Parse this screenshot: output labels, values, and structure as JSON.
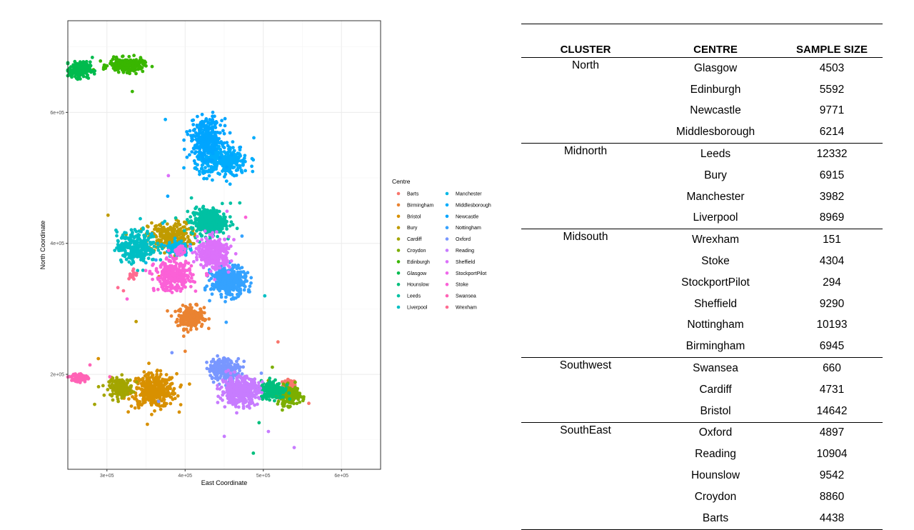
{
  "chart_data": {
    "type": "scatter",
    "xlabel": "East Coordinate",
    "ylabel": "North Coordinate",
    "xlim": [
      250000,
      650000
    ],
    "ylim": [
      55000,
      740000
    ],
    "x_ticks": [
      300000,
      400000,
      500000,
      600000
    ],
    "x_tick_labels": [
      "3e+05",
      "4e+05",
      "5e+05",
      "6e+05"
    ],
    "y_ticks": [
      200000,
      400000,
      600000
    ],
    "y_tick_labels": [
      "2e+05",
      "4e+05",
      "6e+05"
    ],
    "grid": true,
    "legend_title": "Centre",
    "legend_position": "right",
    "series": [
      {
        "name": "Barts",
        "color": "#F8766D",
        "cx": 533000,
        "cy": 182000,
        "sx": 5000,
        "sy": 6000,
        "n": 70
      },
      {
        "name": "Birmingham",
        "color": "#EA8331",
        "cx": 407000,
        "cy": 287000,
        "sx": 10000,
        "sy": 10000,
        "n": 220
      },
      {
        "name": "Bristol",
        "color": "#D89000",
        "cx": 360000,
        "cy": 175000,
        "sx": 17000,
        "sy": 15000,
        "n": 380
      },
      {
        "name": "Bury",
        "color": "#C09B00",
        "cx": 380000,
        "cy": 410000,
        "sx": 16000,
        "sy": 13000,
        "n": 250
      },
      {
        "name": "Cardiff",
        "color": "#A3A500",
        "cx": 318000,
        "cy": 180000,
        "sx": 9000,
        "sy": 8000,
        "n": 150
      },
      {
        "name": "Croydon",
        "color": "#7CAE00",
        "cx": 533000,
        "cy": 168000,
        "sx": 8000,
        "sy": 9000,
        "n": 150
      },
      {
        "name": "Edinburgh",
        "color": "#39B600",
        "cx": 325000,
        "cy": 672000,
        "sx": 13000,
        "sy": 6000,
        "n": 220
      },
      {
        "name": "Glasgow",
        "color": "#00BB4E",
        "cx": 265000,
        "cy": 665000,
        "sx": 8000,
        "sy": 7000,
        "n": 200
      },
      {
        "name": "Hounslow",
        "color": "#00BF7D",
        "cx": 512000,
        "cy": 177000,
        "sx": 9000,
        "sy": 8000,
        "n": 220
      },
      {
        "name": "Leeds",
        "color": "#00C1A3",
        "cx": 430000,
        "cy": 433000,
        "sx": 13000,
        "sy": 12000,
        "n": 380
      },
      {
        "name": "Liverpool",
        "color": "#00BFC4",
        "cx": 338000,
        "cy": 395000,
        "sx": 15000,
        "sy": 14000,
        "n": 280
      },
      {
        "name": "Manchester",
        "color": "#00B8E5",
        "cx": 390000,
        "cy": 393000,
        "sx": 8000,
        "sy": 7000,
        "n": 100
      },
      {
        "name": "Middlesborough",
        "color": "#00ACFC",
        "cx": 447000,
        "cy": 525000,
        "sx": 20000,
        "sy": 13000,
        "n": 320
      },
      {
        "name": "Newcastle",
        "color": "#00A5FF",
        "cx": 427000,
        "cy": 560000,
        "sx": 12000,
        "sy": 17000,
        "n": 320
      },
      {
        "name": "Nottingham",
        "color": "#35A2FF",
        "cx": 456000,
        "cy": 342000,
        "sx": 13000,
        "sy": 13000,
        "n": 380
      },
      {
        "name": "Oxford",
        "color": "#7997FF",
        "cx": 450000,
        "cy": 208000,
        "sx": 12000,
        "sy": 10000,
        "n": 220
      },
      {
        "name": "Reading",
        "color": "#C77CFF",
        "cx": 470000,
        "cy": 175000,
        "sx": 14000,
        "sy": 12000,
        "n": 400
      },
      {
        "name": "Sheffield",
        "color": "#DC71FA",
        "cx": 437000,
        "cy": 385000,
        "sx": 12000,
        "sy": 14000,
        "n": 330
      },
      {
        "name": "StockportPilot",
        "color": "#EF67EB",
        "cx": 393000,
        "cy": 390000,
        "sx": 4000,
        "sy": 4000,
        "n": 30
      },
      {
        "name": "Stoke",
        "color": "#FB61D7",
        "cx": 385000,
        "cy": 350000,
        "sx": 14000,
        "sy": 13000,
        "n": 330
      },
      {
        "name": "Swansea",
        "color": "#FF63B6",
        "cx": 265000,
        "cy": 195000,
        "sx": 6000,
        "sy": 4000,
        "n": 60
      },
      {
        "name": "Wrexham",
        "color": "#FF6C91",
        "cx": 333000,
        "cy": 352000,
        "sx": 3000,
        "sy": 4000,
        "n": 20
      }
    ]
  },
  "table": {
    "headers": [
      "CLUSTER",
      "CENTRE",
      "SAMPLE SIZE"
    ],
    "groups": [
      {
        "cluster": "North",
        "rows": [
          {
            "centre": "Glasgow",
            "size": "4503"
          },
          {
            "centre": "Edinburgh",
            "size": "5592"
          },
          {
            "centre": "Newcastle",
            "size": "9771"
          },
          {
            "centre": "Middlesborough",
            "size": "6214"
          }
        ]
      },
      {
        "cluster": "Midnorth",
        "rows": [
          {
            "centre": "Leeds",
            "size": "12332"
          },
          {
            "centre": "Bury",
            "size": "6915"
          },
          {
            "centre": "Manchester",
            "size": "3982"
          },
          {
            "centre": "Liverpool",
            "size": "8969"
          }
        ]
      },
      {
        "cluster": "Midsouth",
        "rows": [
          {
            "centre": "Wrexham",
            "size": "151"
          },
          {
            "centre": "Stoke",
            "size": "4304"
          },
          {
            "centre": "StockportPilot",
            "size": "294"
          },
          {
            "centre": "Sheffield",
            "size": "9290"
          },
          {
            "centre": "Nottingham",
            "size": "10193"
          },
          {
            "centre": "Birmingham",
            "size": "6945"
          }
        ]
      },
      {
        "cluster": "Southwest",
        "rows": [
          {
            "centre": "Swansea",
            "size": "660"
          },
          {
            "centre": "Cardiff",
            "size": "4731"
          },
          {
            "centre": "Bristol",
            "size": "14642"
          }
        ]
      },
      {
        "cluster": "SouthEast",
        "rows": [
          {
            "centre": "Oxford",
            "size": "4897"
          },
          {
            "centre": "Reading",
            "size": "10904"
          },
          {
            "centre": "Hounslow",
            "size": "9542"
          },
          {
            "centre": "Croydon",
            "size": "8860"
          },
          {
            "centre": "Barts",
            "size": "4438"
          }
        ]
      }
    ]
  }
}
